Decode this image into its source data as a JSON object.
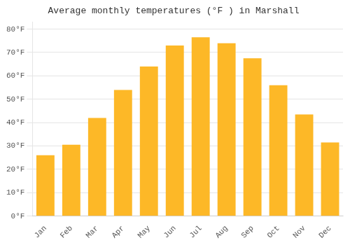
{
  "chart_data": {
    "type": "bar",
    "title": "Average monthly temperatures (°F ) in Marshall",
    "categories": [
      "Jan",
      "Feb",
      "Mar",
      "Apr",
      "May",
      "Jun",
      "Jul",
      "Aug",
      "Sep",
      "Oct",
      "Nov",
      "Dec"
    ],
    "values": [
      26,
      30.5,
      42,
      54,
      64,
      73,
      76.5,
      74,
      67.5,
      56,
      43.5,
      31.5
    ],
    "color": "#FDB827",
    "ylim": [
      0,
      83
    ],
    "yticks": [
      {
        "value": 0,
        "label": "0°F"
      },
      {
        "value": 10,
        "label": "10°F"
      },
      {
        "value": 20,
        "label": "20°F"
      },
      {
        "value": 30,
        "label": "30°F"
      },
      {
        "value": 40,
        "label": "40°F"
      },
      {
        "value": 50,
        "label": "50°F"
      },
      {
        "value": 60,
        "label": "60°F"
      },
      {
        "value": 70,
        "label": "70°F"
      },
      {
        "value": 80,
        "label": "80°F"
      }
    ],
    "grid": true
  }
}
